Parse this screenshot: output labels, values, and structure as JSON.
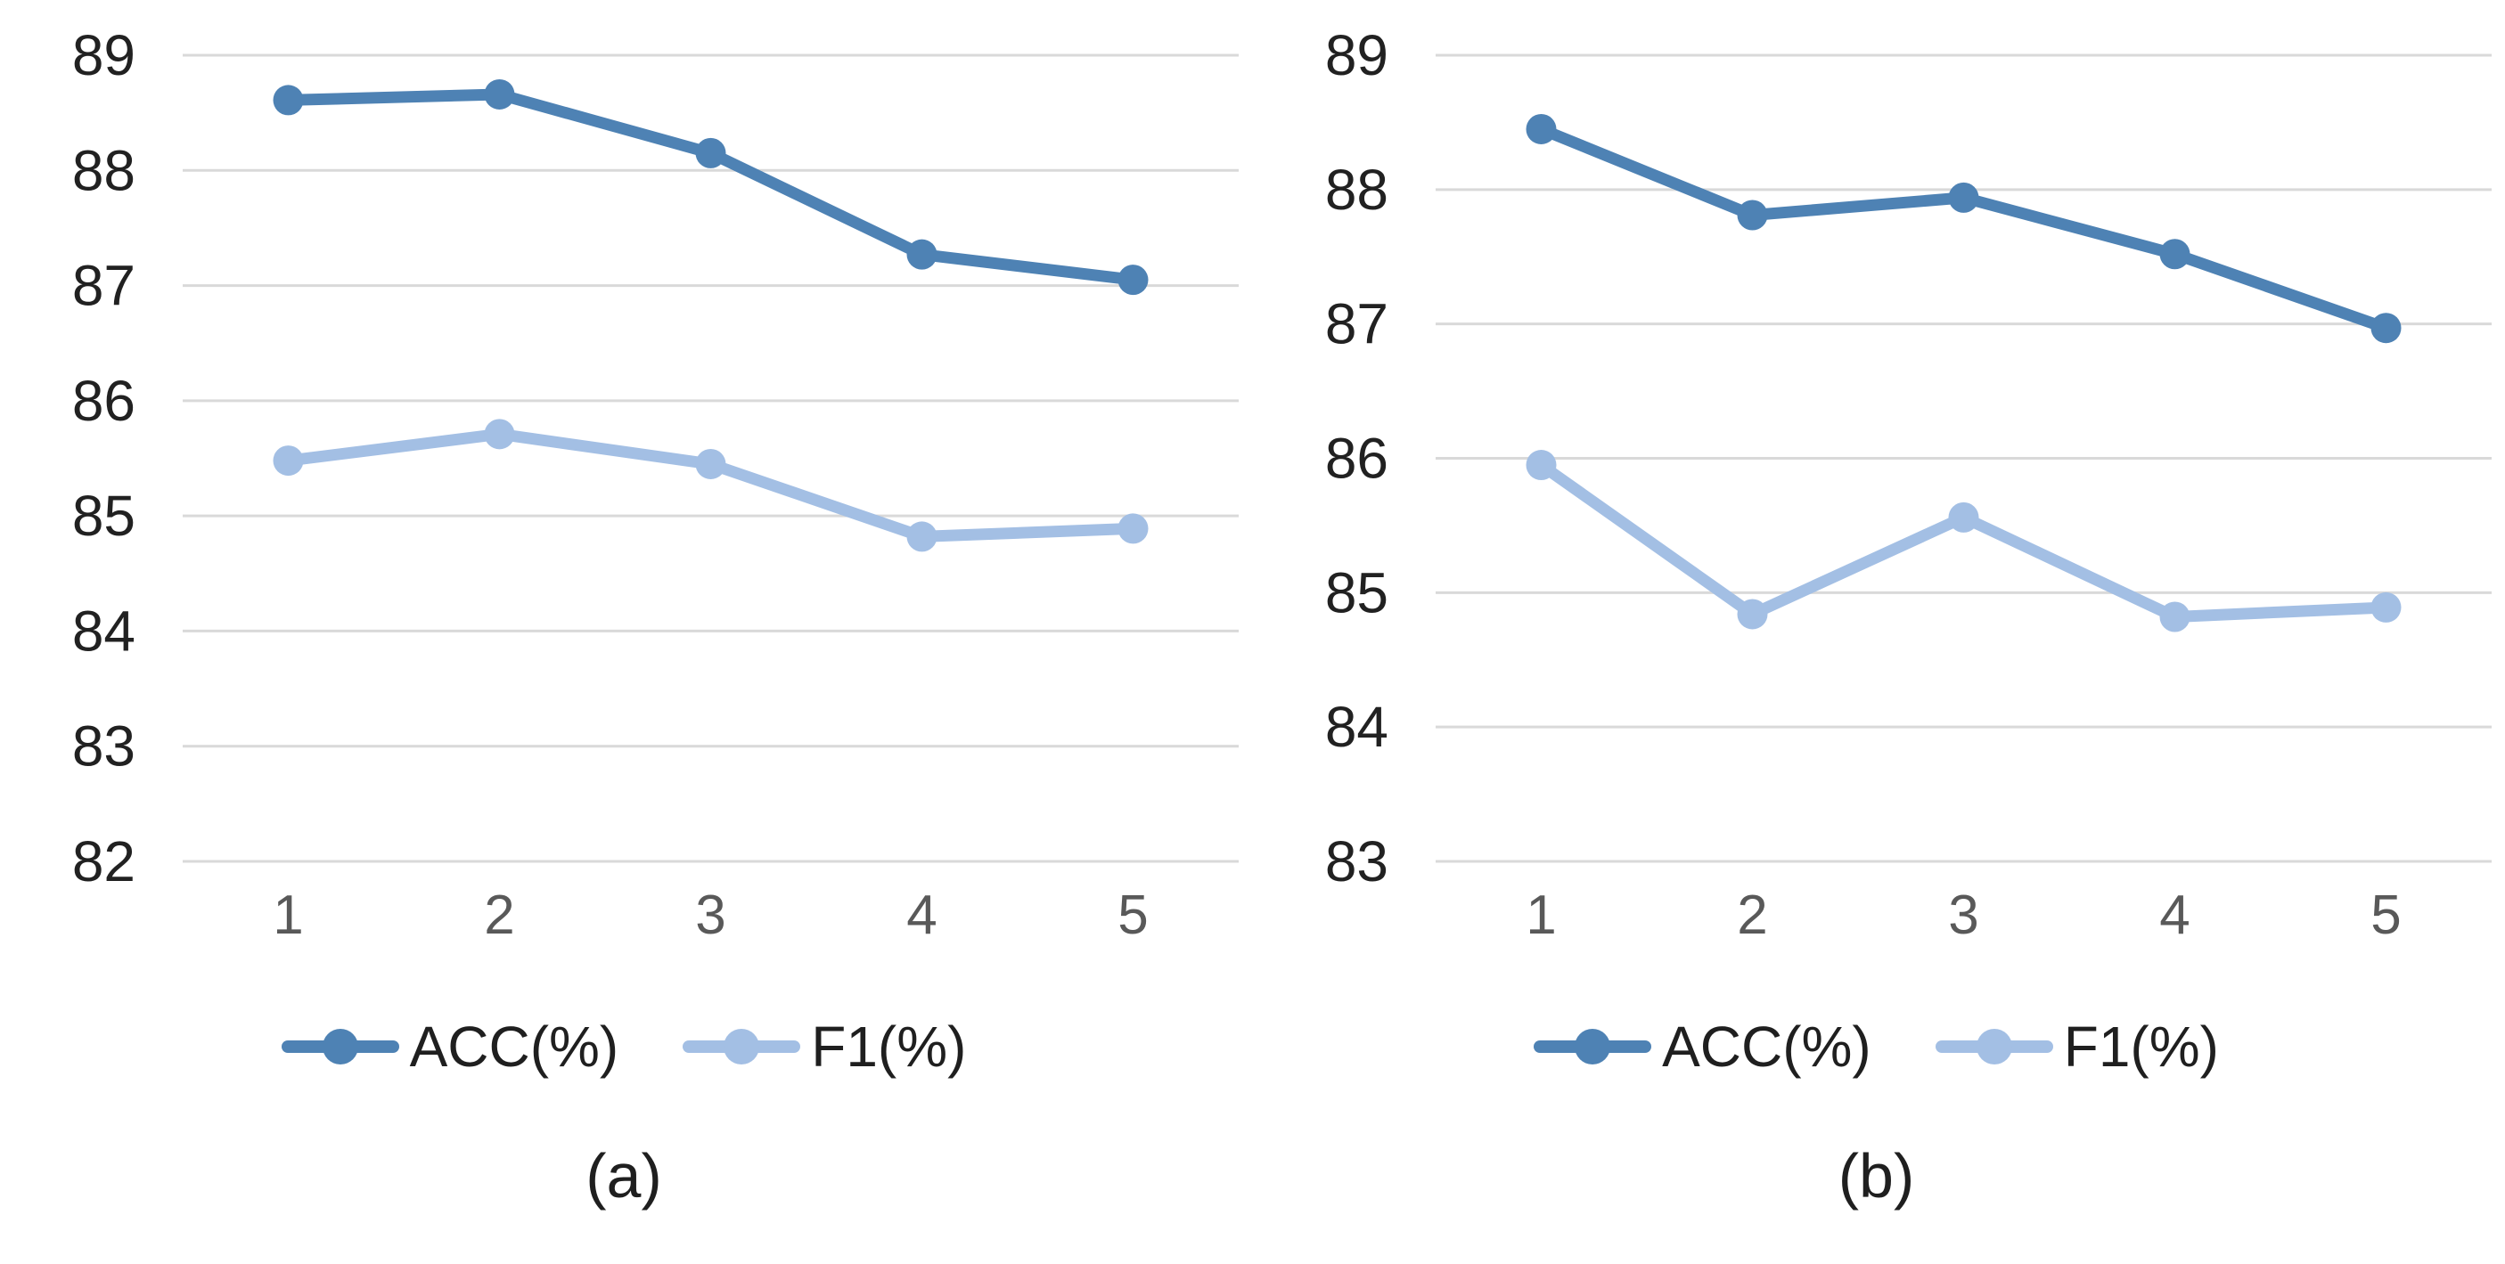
{
  "page": {
    "background": "#ffffff"
  },
  "styles": {
    "gridline_color": "#D9D9D9",
    "y_axis_label_color": "#212121",
    "x_axis_label_color": "#595959",
    "legend_text_color": "#1f1f1f",
    "caption_color": "#1f1f1f",
    "series_dark_blue": "#4E82B4",
    "series_light_blue": "#A3BFE4"
  },
  "chart_data": [
    {
      "type": "line",
      "caption": "(a)",
      "title": "",
      "xlabel": "",
      "ylabel": "",
      "grid": true,
      "legend_position": "bottom",
      "x": [
        1,
        2,
        3,
        4,
        5
      ],
      "x_tick_labels": [
        "1",
        "2",
        "3",
        "4",
        "5"
      ],
      "ylim": [
        82,
        89
      ],
      "yticks": [
        89,
        88,
        87,
        86,
        85,
        84,
        83,
        82
      ],
      "series": [
        {
          "name": "ACC(%)",
          "color": "#4E82B4",
          "values": [
            88.61,
            88.66,
            88.15,
            87.27,
            87.05
          ]
        },
        {
          "name": "F1(%)",
          "color": "#A3BFE4",
          "values": [
            85.48,
            85.71,
            85.45,
            84.82,
            84.89
          ]
        }
      ]
    },
    {
      "type": "line",
      "caption": "(b)",
      "title": "",
      "xlabel": "",
      "ylabel": "",
      "grid": true,
      "legend_position": "bottom",
      "x": [
        1,
        2,
        3,
        4,
        5
      ],
      "x_tick_labels": [
        "1",
        "2",
        "3",
        "4",
        "5"
      ],
      "ylim": [
        83,
        89
      ],
      "yticks": [
        89,
        88,
        87,
        86,
        85,
        84,
        83
      ],
      "series": [
        {
          "name": "ACC(%)",
          "color": "#4E82B4",
          "values": [
            88.45,
            87.81,
            87.94,
            87.52,
            86.97
          ]
        },
        {
          "name": "F1(%)",
          "color": "#A3BFE4",
          "values": [
            85.95,
            84.84,
            85.56,
            84.82,
            84.89
          ]
        }
      ]
    }
  ]
}
